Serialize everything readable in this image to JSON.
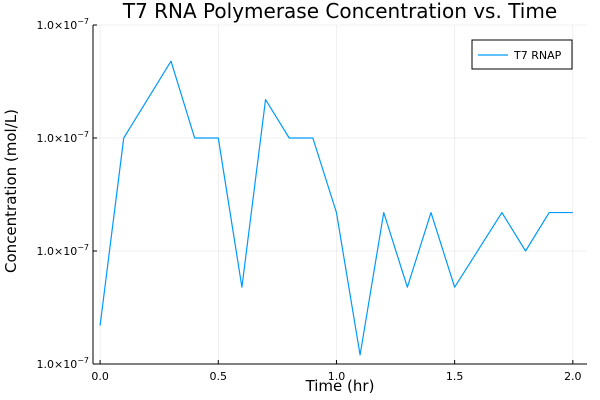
{
  "chart_data": {
    "type": "line",
    "title": "T7 RNA Polymerase Concentration vs. Time",
    "xlabel": "Time (hr)",
    "ylabel": "Concentration (mol/L)",
    "xlim": [
      -0.03,
      2.06
    ],
    "ylim": [
      0.0,
      1.5
    ],
    "x_ticks": [
      0.0,
      0.5,
      1.0,
      1.5,
      2.0
    ],
    "x_tick_labels": [
      "0.0",
      "0.5",
      "1.0",
      "1.5",
      "2.0"
    ],
    "y_ticks": [
      0.0,
      0.5,
      1.0,
      1.5
    ],
    "y_tick_labels": [
      "1.0×10",
      "1.0×10",
      "1.0×10",
      "1.0×10"
    ],
    "y_tick_exponent": "−7",
    "grid": true,
    "legend": "top-right",
    "series": [
      {
        "name": "T7 RNAP",
        "color": "#009AFA",
        "x": [
          0.0,
          0.1,
          0.3,
          0.4,
          0.5,
          0.6,
          0.7,
          0.8,
          0.9,
          1.0,
          1.1,
          1.2,
          1.3,
          1.4,
          1.5,
          1.7,
          1.8,
          1.9,
          2.0
        ],
        "y": [
          0.17,
          1.0,
          1.34,
          1.0,
          1.0,
          0.34,
          1.17,
          1.0,
          1.0,
          0.67,
          0.04,
          0.67,
          0.34,
          0.67,
          0.34,
          0.67,
          0.5,
          0.67,
          0.67
        ]
      }
    ]
  }
}
